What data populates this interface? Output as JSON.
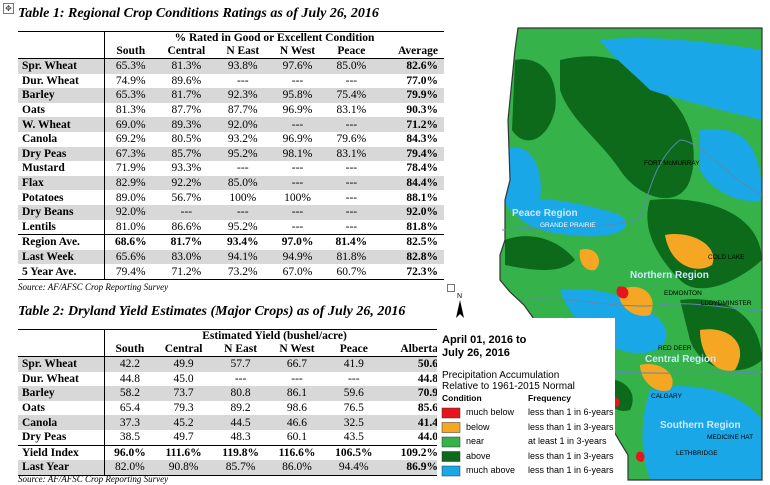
{
  "table1": {
    "title": "Table 1: Regional Crop Conditions Ratings as of July 26, 2016",
    "header_span": "% Rated in Good or Excellent Condition",
    "columns": [
      "South",
      "Central",
      "N East",
      "N West",
      "Peace",
      "Average"
    ],
    "rows": [
      {
        "label": "Spr. Wheat",
        "values": [
          "65.3%",
          "81.3%",
          "93.8%",
          "97.6%",
          "85.0%",
          "82.6%"
        ],
        "shade": true
      },
      {
        "label": "Dur. Wheat",
        "values": [
          "74.9%",
          "89.6%",
          "---",
          "---",
          "---",
          "77.0%"
        ],
        "shade": false
      },
      {
        "label": "Barley",
        "values": [
          "65.3%",
          "81.7%",
          "92.3%",
          "95.8%",
          "75.4%",
          "79.9%"
        ],
        "shade": true
      },
      {
        "label": "Oats",
        "values": [
          "81.3%",
          "87.7%",
          "87.7%",
          "96.9%",
          "83.1%",
          "90.3%"
        ],
        "shade": false
      },
      {
        "label": "W. Wheat",
        "values": [
          "69.0%",
          "89.3%",
          "92.0%",
          "---",
          "---",
          "71.2%"
        ],
        "shade": true
      },
      {
        "label": "Canola",
        "values": [
          "69.2%",
          "80.5%",
          "93.2%",
          "96.9%",
          "79.6%",
          "84.3%"
        ],
        "shade": false
      },
      {
        "label": "Dry Peas",
        "values": [
          "67.3%",
          "85.7%",
          "95.2%",
          "98.1%",
          "83.1%",
          "79.4%"
        ],
        "shade": true
      },
      {
        "label": "Mustard",
        "values": [
          "71.9%",
          "93.3%",
          "---",
          "---",
          "---",
          "78.4%"
        ],
        "shade": false
      },
      {
        "label": "Flax",
        "values": [
          "82.9%",
          "92.2%",
          "85.0%",
          "---",
          "---",
          "84.4%"
        ],
        "shade": true
      },
      {
        "label": "Potatoes",
        "values": [
          "89.0%",
          "56.7%",
          "100%",
          "100%",
          "---",
          "88.1%"
        ],
        "shade": false
      },
      {
        "label": "Dry Beans",
        "values": [
          "92.0%",
          "---",
          "---",
          "---",
          "---",
          "92.0%"
        ],
        "shade": true
      },
      {
        "label": "Lentils",
        "values": [
          "81.0%",
          "86.6%",
          "95.2%",
          "---",
          "---",
          "81.8%"
        ],
        "shade": false
      }
    ],
    "summary": [
      {
        "label": "Region Ave.",
        "values": [
          "68.6%",
          "81.7%",
          "93.4%",
          "97.0%",
          "81.4%",
          "82.5%"
        ],
        "shade": false,
        "bold": true
      },
      {
        "label": "Last Week",
        "values": [
          "65.6%",
          "83.0%",
          "94.1%",
          "94.9%",
          "81.8%",
          "82.8%"
        ],
        "shade": true,
        "bold": false
      },
      {
        "label": "5 Year Ave.",
        "values": [
          "79.4%",
          "71.2%",
          "73.2%",
          "67.0%",
          "60.7%",
          "72.3%"
        ],
        "shade": false,
        "bold": false
      }
    ],
    "source": "Source: AF/AFSC Crop Reporting Survey"
  },
  "table2": {
    "title": "Table 2: Dryland Yield Estimates (Major Crops) as of July 26, 2016",
    "header_span": "Estimated Yield (bushel/acre)",
    "columns": [
      "South",
      "Central",
      "N East",
      "N West",
      "Peace",
      "Alberta"
    ],
    "rows": [
      {
        "label": "Spr. Wheat",
        "values": [
          "42.2",
          "49.9",
          "57.7",
          "66.7",
          "41.9",
          "50.6"
        ],
        "shade": true
      },
      {
        "label": "Dur. Wheat",
        "values": [
          "44.8",
          "45.0",
          "---",
          "---",
          "---",
          "44.8"
        ],
        "shade": false
      },
      {
        "label": "Barley",
        "values": [
          "58.2",
          "73.7",
          "80.8",
          "86.1",
          "59.6",
          "70.9"
        ],
        "shade": true
      },
      {
        "label": "Oats",
        "values": [
          "65.4",
          "79.3",
          "89.2",
          "98.6",
          "76.5",
          "85.6"
        ],
        "shade": false
      },
      {
        "label": "Canola",
        "values": [
          "37.3",
          "45.2",
          "44.5",
          "46.6",
          "32.5",
          "41.4"
        ],
        "shade": true
      },
      {
        "label": "Dry Peas",
        "values": [
          "38.5",
          "49.7",
          "48.3",
          "60.1",
          "43.5",
          "44.0"
        ],
        "shade": false
      }
    ],
    "summary": [
      {
        "label": "Yield Index",
        "values": [
          "96.0%",
          "111.6%",
          "119.8%",
          "116.6%",
          "106.5%",
          "109.2%"
        ],
        "shade": false,
        "bold": true
      },
      {
        "label": "Last Year",
        "values": [
          "82.0%",
          "90.8%",
          "85.7%",
          "86.0%",
          "94.4%",
          "86.9%"
        ],
        "shade": true,
        "bold": false
      }
    ],
    "source": "Source: AF/AFSC Crop Reporting Survey"
  },
  "map": {
    "date_range": [
      "April 01, 2016 to",
      "July 26, 2016"
    ],
    "subtitle": [
      "Precipitation Accumulation",
      "Relative to 1961-2015 Normal"
    ],
    "legend_headers": {
      "condition": "Condition",
      "frequency": "Frequency"
    },
    "legend": [
      {
        "label": "much below",
        "freq": "less than 1 in 6-years",
        "color": "#e8141c"
      },
      {
        "label": "below",
        "freq": "less than 1 in 3-years",
        "color": "#f5a623"
      },
      {
        "label": "near",
        "freq": "at least 1 in 3-years",
        "color": "#36b24a"
      },
      {
        "label": "above",
        "freq": "less than 1 in 3-years",
        "color": "#0c6a1a"
      },
      {
        "label": "much above",
        "freq": "less than 1 in 6-years",
        "color": "#1aa7e8"
      }
    ],
    "regions": {
      "peace": "Peace Region",
      "northern": "Northern Region",
      "central": "Central Region",
      "southern": "Southern Region"
    },
    "cities": [
      "FORT McMURRAY",
      "GRANDE PRAIRIE",
      "COLD LAKE",
      "EDMONTON",
      "LLOYDMINSTER",
      "RED DEER",
      "CALGARY",
      "MEDICINE HAT",
      "LETHBRIDGE"
    ]
  }
}
